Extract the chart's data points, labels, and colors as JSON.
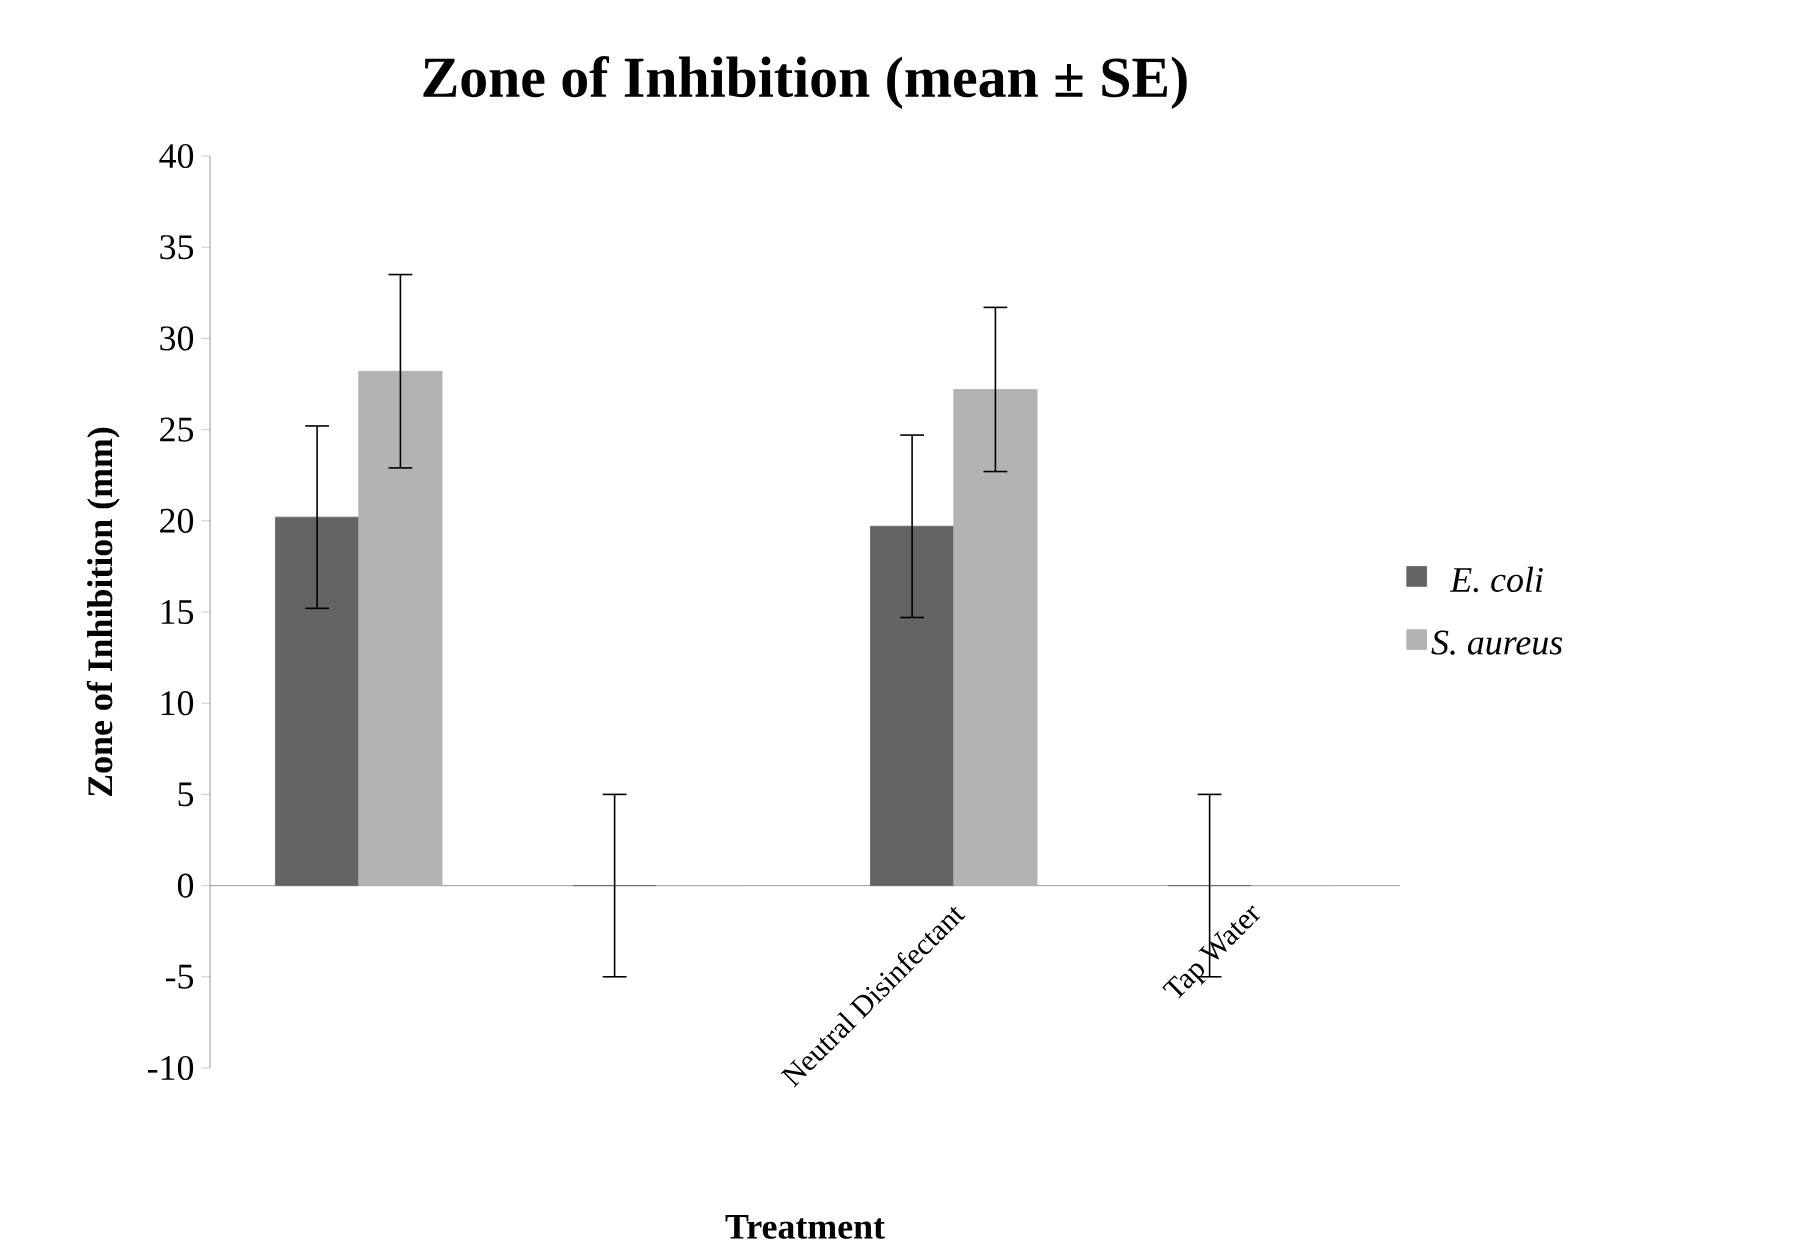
{
  "chart_data": {
    "type": "bar",
    "title": "Zone of Inhibition (mean ± SE)",
    "xlabel": "Treatment",
    "ylabel": "Zone of Inhibition (mm)",
    "categories": [
      null,
      null,
      "Neutral Disinfectant",
      "Tap Water"
    ],
    "series": [
      {
        "name": "E. coli",
        "color": "#646464",
        "values": [
          20.2,
          0,
          19.7,
          0
        ],
        "errors": [
          5,
          5,
          5,
          5
        ]
      },
      {
        "name": "S. aureus",
        "color": "#b3b3b3",
        "values": [
          28.2,
          0,
          27.2,
          0
        ],
        "errors": [
          5.3,
          null,
          4.5,
          null
        ]
      }
    ],
    "ylim": [
      -10,
      40
    ],
    "yticks": [
      -10,
      -5,
      0,
      5,
      10,
      15,
      20,
      25,
      30,
      35,
      40
    ],
    "grid": false,
    "legend": "right"
  }
}
